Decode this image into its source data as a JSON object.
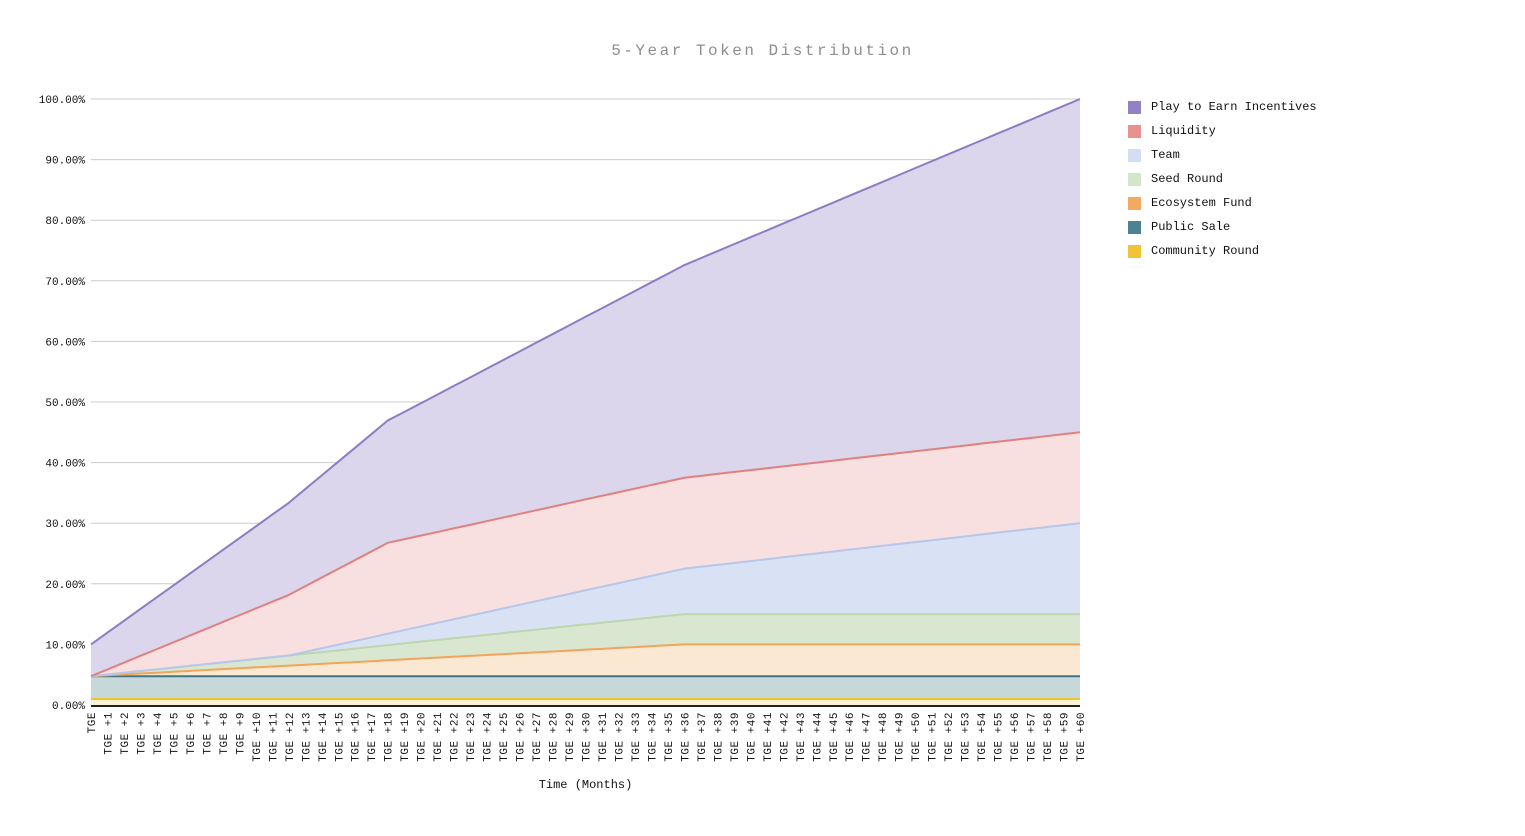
{
  "chart_data": {
    "type": "area",
    "stacked": true,
    "title": "5-Year Token Distribution",
    "xlabel": "Time (Months)",
    "ylabel": "",
    "ylim": [
      0,
      100
    ],
    "grid": true,
    "legend_position": "right",
    "y_ticks": [
      0,
      10,
      20,
      30,
      40,
      50,
      60,
      70,
      80,
      90,
      100
    ],
    "y_tick_labels": [
      "0.00%",
      "10.00%",
      "20.00%",
      "30.00%",
      "40.00%",
      "50.00%",
      "60.00%",
      "70.00%",
      "80.00%",
      "90.00%",
      "100.00%"
    ],
    "categories": [
      "TGE",
      "TGE +1",
      "TGE +2",
      "TGE +3",
      "TGE +4",
      "TGE +5",
      "TGE +6",
      "TGE +7",
      "TGE +8",
      "TGE +9",
      "TGE +10",
      "TGE +11",
      "TGE +12",
      "TGE +13",
      "TGE +14",
      "TGE +15",
      "TGE +16",
      "TGE +17",
      "TGE +18",
      "TGE +19",
      "TGE +20",
      "TGE +21",
      "TGE +22",
      "TGE +23",
      "TGE +24",
      "TGE +25",
      "TGE +26",
      "TGE +27",
      "TGE +28",
      "TGE +29",
      "TGE +30",
      "TGE +31",
      "TGE +32",
      "TGE +33",
      "TGE +34",
      "TGE +35",
      "TGE +36",
      "TGE +37",
      "TGE +38",
      "TGE +39",
      "TGE +40",
      "TGE +41",
      "TGE +42",
      "TGE +43",
      "TGE +44",
      "TGE +45",
      "TGE +46",
      "TGE +47",
      "TGE +48",
      "TGE +49",
      "TGE +50",
      "TGE +51",
      "TGE +52",
      "TGE +53",
      "TGE +54",
      "TGE +55",
      "TGE +56",
      "TGE +57",
      "TGE +58",
      "TGE +59",
      "TGE +60"
    ],
    "series": [
      {
        "name": "Community Round",
        "swatch": "#f1c437",
        "line": "#f0c331",
        "fill": "#fcf3d5",
        "values": [
          1,
          1,
          1,
          1,
          1,
          1,
          1,
          1,
          1,
          1,
          1,
          1,
          1,
          1,
          1,
          1,
          1,
          1,
          1,
          1,
          1,
          1,
          1,
          1,
          1,
          1,
          1,
          1,
          1,
          1,
          1,
          1,
          1,
          1,
          1,
          1,
          1,
          1,
          1,
          1,
          1,
          1,
          1,
          1,
          1,
          1,
          1,
          1,
          1,
          1,
          1,
          1,
          1,
          1,
          1,
          1,
          1,
          1,
          1,
          1,
          1
        ]
      },
      {
        "name": "Public Sale",
        "swatch": "#4d8290",
        "line": "#3f7582",
        "fill": "#c7d8db",
        "values": [
          3.75,
          3.75,
          3.75,
          3.75,
          3.75,
          3.75,
          3.75,
          3.75,
          3.75,
          3.75,
          3.75,
          3.75,
          3.75,
          3.75,
          3.75,
          3.75,
          3.75,
          3.75,
          3.75,
          3.75,
          3.75,
          3.75,
          3.75,
          3.75,
          3.75,
          3.75,
          3.75,
          3.75,
          3.75,
          3.75,
          3.75,
          3.75,
          3.75,
          3.75,
          3.75,
          3.75,
          3.75,
          3.75,
          3.75,
          3.75,
          3.75,
          3.75,
          3.75,
          3.75,
          3.75,
          3.75,
          3.75,
          3.75,
          3.75,
          3.75,
          3.75,
          3.75,
          3.75,
          3.75,
          3.75,
          3.75,
          3.75,
          3.75,
          3.75,
          3.75,
          3.75
        ]
      },
      {
        "name": "Ecosystem Fund",
        "swatch": "#f4a961",
        "line": "#f3a45a",
        "fill": "#fae8d3",
        "values": [
          0,
          0.15,
          0.29,
          0.44,
          0.58,
          0.73,
          0.88,
          1.02,
          1.17,
          1.31,
          1.46,
          1.6,
          1.75,
          1.9,
          2.04,
          2.19,
          2.33,
          2.48,
          2.63,
          2.77,
          2.92,
          3.06,
          3.21,
          3.35,
          3.5,
          3.65,
          3.79,
          3.94,
          4.08,
          4.23,
          4.38,
          4.52,
          4.67,
          4.81,
          4.96,
          5.1,
          5.25,
          5.25,
          5.25,
          5.25,
          5.25,
          5.25,
          5.25,
          5.25,
          5.25,
          5.25,
          5.25,
          5.25,
          5.25,
          5.25,
          5.25,
          5.25,
          5.25,
          5.25,
          5.25,
          5.25,
          5.25,
          5.25,
          5.25,
          5.25,
          5.25
        ]
      },
      {
        "name": "Seed Round",
        "swatch": "#d3e6cb",
        "line": "#bcd6ad",
        "fill": "#d9e7d1",
        "values": [
          0,
          0.14,
          0.28,
          0.42,
          0.56,
          0.69,
          0.83,
          0.97,
          1.11,
          1.25,
          1.39,
          1.53,
          1.67,
          1.81,
          1.94,
          2.08,
          2.22,
          2.36,
          2.5,
          2.64,
          2.78,
          2.92,
          3.06,
          3.19,
          3.33,
          3.47,
          3.61,
          3.75,
          3.89,
          4.03,
          4.17,
          4.31,
          4.44,
          4.58,
          4.72,
          4.86,
          5,
          5,
          5,
          5,
          5,
          5,
          5,
          5,
          5,
          5,
          5,
          5,
          5,
          5,
          5,
          5,
          5,
          5,
          5,
          5,
          5,
          5,
          5,
          5,
          5
        ]
      },
      {
        "name": "Team",
        "swatch": "#d3def2",
        "line": "#b7c6e9",
        "fill": "#d9e2f4",
        "values": [
          0,
          0,
          0,
          0,
          0,
          0,
          0,
          0,
          0,
          0,
          0,
          0,
          0,
          0.31,
          0.63,
          0.94,
          1.25,
          1.56,
          1.88,
          2.19,
          2.5,
          2.81,
          3.13,
          3.44,
          3.75,
          4.06,
          4.38,
          4.69,
          5,
          5.31,
          5.63,
          5.94,
          6.25,
          6.56,
          6.88,
          7.19,
          7.5,
          7.81,
          8.13,
          8.44,
          8.75,
          9.06,
          9.38,
          9.69,
          10,
          10.31,
          10.63,
          10.94,
          11.25,
          11.56,
          11.88,
          12.19,
          12.5,
          12.81,
          13.13,
          13.44,
          13.75,
          14.06,
          14.38,
          14.69,
          15
        ]
      },
      {
        "name": "Liquidity",
        "swatch": "#e8918f",
        "line": "#e0807f",
        "fill": "#f8dfe0",
        "values": [
          0,
          0.83,
          1.67,
          2.5,
          3.33,
          4.17,
          5,
          5.83,
          6.67,
          7.5,
          8.33,
          9.17,
          10,
          10.83,
          11.67,
          12.5,
          13.33,
          14.17,
          15,
          15,
          15,
          15,
          15,
          15,
          15,
          15,
          15,
          15,
          15,
          15,
          15,
          15,
          15,
          15,
          15,
          15,
          15,
          15,
          15,
          15,
          15,
          15,
          15,
          15,
          15,
          15,
          15,
          15,
          15,
          15,
          15,
          15,
          15,
          15,
          15,
          15,
          15,
          15,
          15,
          15,
          15
        ]
      },
      {
        "name": "Play to Earn Incentives",
        "swatch": "#9181c5",
        "line": "#8e7cc3",
        "fill": "#dcd6ed",
        "values": [
          5.25,
          6.08,
          6.91,
          7.74,
          8.57,
          9.4,
          10.22,
          11.05,
          11.88,
          12.71,
          13.54,
          14.37,
          15.2,
          16.03,
          16.86,
          17.69,
          18.52,
          19.35,
          20.18,
          21,
          21.83,
          22.66,
          23.49,
          24.32,
          25.15,
          25.98,
          26.81,
          27.64,
          28.47,
          29.3,
          30.13,
          30.95,
          31.78,
          32.61,
          33.44,
          34.27,
          35.1,
          35.93,
          36.76,
          37.59,
          38.42,
          39.25,
          40.08,
          40.9,
          41.73,
          42.56,
          43.39,
          44.22,
          45.05,
          45.88,
          46.71,
          47.54,
          48.37,
          49.2,
          50.02,
          50.85,
          51.68,
          52.51,
          53.34,
          54.17,
          55
        ]
      }
    ]
  },
  "colors": {
    "background": "#ffffff",
    "gridline": "#cccccc",
    "axis_line": "#222222",
    "title_text": "#8e8e8e",
    "axis_text": "#111111"
  }
}
